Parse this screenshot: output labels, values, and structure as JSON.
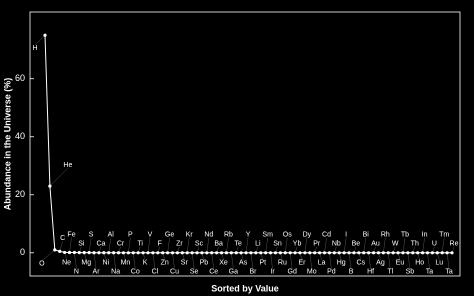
{
  "chart_data": {
    "type": "line",
    "x_label": "Sorted by Value",
    "y_label": "Abundance in the Universe (%)",
    "categories": [
      "H",
      "He",
      "O",
      "C",
      "Ne",
      "Fe",
      "N",
      "Si",
      "Mg",
      "S",
      "Ar",
      "Ca",
      "Ni",
      "Al",
      "Na",
      "Cr",
      "Mn",
      "P",
      "Co",
      "Ti",
      "K",
      "V",
      "Cl",
      "F",
      "Zn",
      "Ge",
      "Cu",
      "Zr",
      "Sr",
      "Kr",
      "Se",
      "Sc",
      "Pb",
      "Nd",
      "Ce",
      "Ba",
      "Xe",
      "Rb",
      "Ga",
      "Te",
      "As",
      "Y",
      "Br",
      "Li",
      "Pt",
      "Sm",
      "Ir",
      "Sn",
      "Ru",
      "Os",
      "Gd",
      "Yb",
      "Er",
      "Dy",
      "Mo",
      "Pr",
      "La",
      "Cd",
      "Pd",
      "Nb",
      "Hg",
      "I",
      "B",
      "Be",
      "Cs",
      "Bi",
      "Hf",
      "Au",
      "Ag",
      "Rh",
      "Tl",
      "W",
      "Eu",
      "Tb",
      "Sb",
      "Th",
      "Ho",
      "In",
      "Ta",
      "U",
      "Lu",
      "Tm",
      "Ta",
      "Re"
    ],
    "values": [
      75,
      23,
      1,
      0.5,
      0.13,
      0.11,
      0.1,
      0.07,
      0.06,
      0.05,
      0.02,
      0.007,
      0.006,
      0.005,
      0.002,
      0.0015,
      0.0008,
      0.0007,
      0.0003,
      0.0003,
      0.0003,
      0.0001,
      0.0001,
      4e-05,
      0,
      0,
      0,
      0,
      0,
      0,
      0,
      0,
      0,
      0,
      0,
      0,
      0,
      0,
      0,
      0,
      0,
      0,
      0,
      0,
      0,
      0,
      0,
      0,
      0,
      0,
      0,
      0,
      0,
      0,
      0,
      0,
      0,
      0,
      0,
      0,
      0,
      0,
      0,
      0,
      0,
      0,
      0,
      0,
      0,
      0,
      0,
      0,
      0,
      0,
      0,
      0,
      0,
      0,
      0,
      0,
      0,
      0,
      0,
      0
    ],
    "color": "#ffffff",
    "ylim": [
      -8,
      83
    ],
    "yticks": [
      0,
      20,
      40,
      60
    ]
  }
}
